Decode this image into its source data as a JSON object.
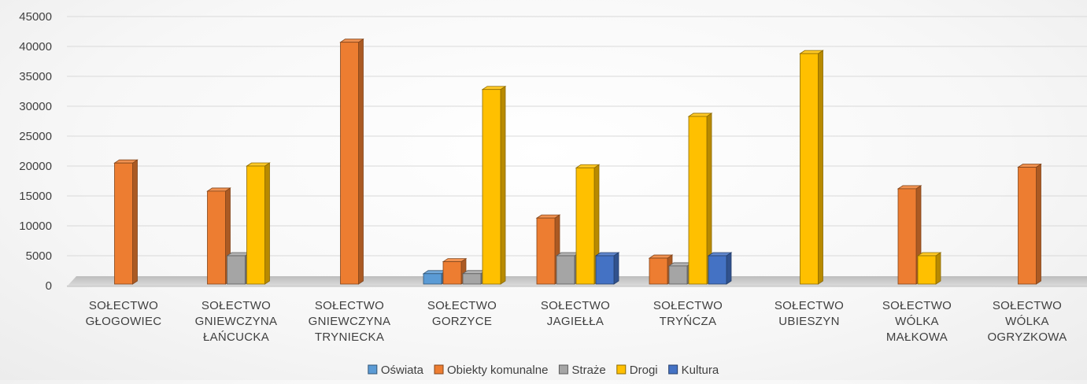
{
  "chart_data": {
    "type": "bar",
    "categories": [
      [
        "SOŁECTWO",
        "GŁOGOWIEC"
      ],
      [
        "SOŁECTWO",
        "GNIEWCZYNA",
        "ŁAŃCUCKA"
      ],
      [
        "SOŁECTWO",
        "GNIEWCZYNA",
        "TRYNIECKA"
      ],
      [
        "SOŁECTWO",
        "GORZYCE"
      ],
      [
        "SOŁECTWO",
        "JAGIEŁŁA"
      ],
      [
        "SOŁECTWO",
        "TRYŃCZA"
      ],
      [
        "SOŁECTWO",
        "UBIESZYN"
      ],
      [
        "SOŁECTWO",
        "WÓLKA",
        "MAŁKOWA"
      ],
      [
        "SOŁECTWO",
        "WÓLKA",
        "OGRYZKOWA"
      ]
    ],
    "series": [
      {
        "name": "Oświata",
        "color": "#5b9bd5",
        "values": [
          null,
          null,
          null,
          2000,
          null,
          null,
          null,
          null,
          null
        ]
      },
      {
        "name": "Obiekty komunalne",
        "color": "#ed7d31",
        "values": [
          20500,
          15800,
          40700,
          4000,
          11300,
          4600,
          null,
          16200,
          19800
        ]
      },
      {
        "name": "Straże",
        "color": "#a5a5a5",
        "values": [
          null,
          5000,
          null,
          2000,
          5000,
          3300,
          null,
          null,
          null
        ]
      },
      {
        "name": "Drogi",
        "color": "#ffc000",
        "values": [
          null,
          20000,
          null,
          32800,
          19700,
          28300,
          38800,
          5000,
          null
        ]
      },
      {
        "name": "Kultura",
        "color": "#4472c4",
        "values": [
          null,
          null,
          null,
          null,
          5000,
          5000,
          null,
          null,
          null
        ]
      }
    ],
    "yticks": [
      "0",
      "5000",
      "10000",
      "15000",
      "20000",
      "25000",
      "30000",
      "35000",
      "40000",
      "45000"
    ],
    "ylim": [
      0,
      45000
    ],
    "grid": true,
    "legend_position": "bottom",
    "style": "3d-clustered-column"
  }
}
